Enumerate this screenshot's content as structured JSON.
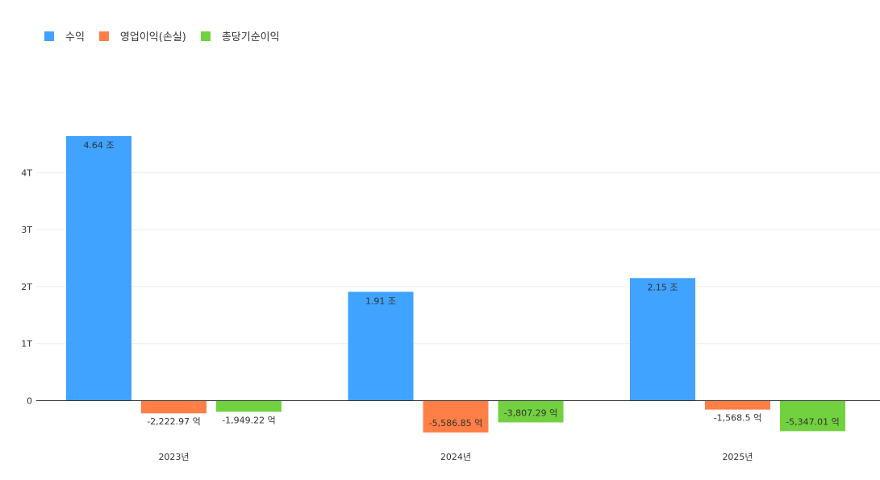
{
  "chart_data": {
    "type": "bar",
    "categories": [
      "2023년",
      "2024년",
      "2025년"
    ],
    "series": [
      {
        "name": "수익",
        "color": "#3FA3FF",
        "values": [
          4640000000000,
          1910000000000,
          2150000000000
        ],
        "labels": [
          "4.64 조",
          "1.91 조",
          "2.15 조"
        ]
      },
      {
        "name": "영업이익(손실)",
        "color": "#FF7F47",
        "values": [
          -222297000000,
          -558685000000,
          -156850000000
        ],
        "labels": [
          "-2,222.97 억",
          "-5,586.85 억",
          "-1,568.5 억"
        ]
      },
      {
        "name": "총당기순이익",
        "color": "#72D13F",
        "values": [
          -194922000000,
          -380729000000,
          -534701000000
        ],
        "labels": [
          "-1,949.22 억",
          "-3,807.29 억",
          "-5,347.01 억"
        ]
      }
    ],
    "yticks": [
      {
        "value": 0,
        "label": "0"
      },
      {
        "value": 1000000000000,
        "label": "1T"
      },
      {
        "value": 2000000000000,
        "label": "2T"
      },
      {
        "value": 3000000000000,
        "label": "3T"
      },
      {
        "value": 4000000000000,
        "label": "4T"
      }
    ],
    "ylim": [
      -700000000000,
      5000000000000
    ],
    "grid": true,
    "legend_position": "top-left"
  }
}
